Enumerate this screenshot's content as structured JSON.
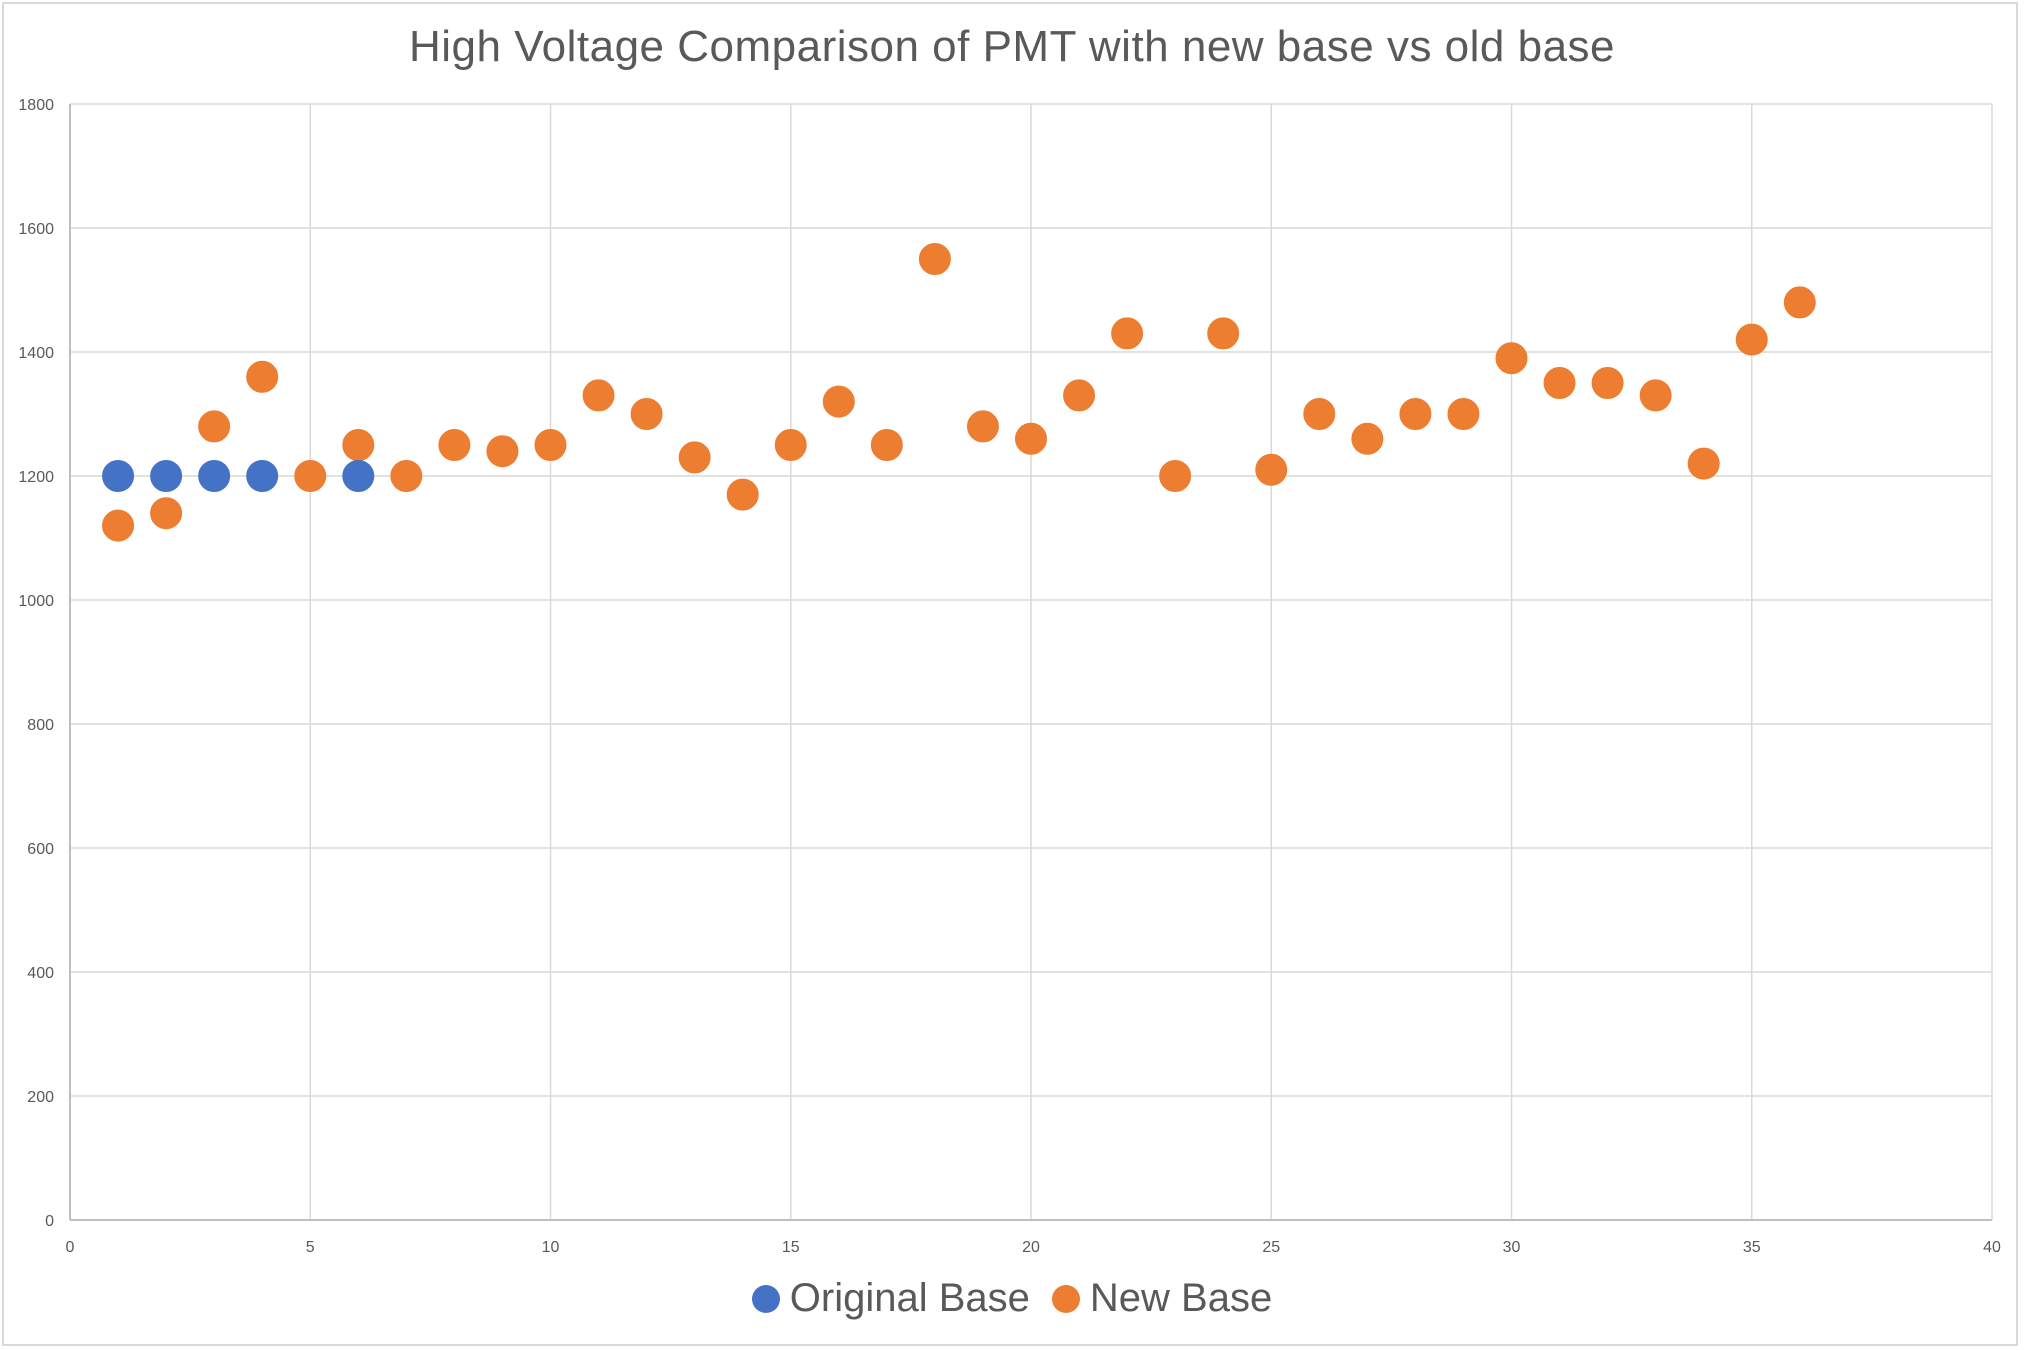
{
  "chart_data": {
    "type": "scatter",
    "title": "High Voltage Comparison of PMT with new base vs old base",
    "xlabel": "",
    "ylabel": "",
    "xlim": [
      0,
      40
    ],
    "ylim": [
      0,
      1800
    ],
    "x_ticks": [
      0,
      5,
      10,
      15,
      20,
      25,
      30,
      35,
      40
    ],
    "y_ticks": [
      0,
      200,
      400,
      600,
      800,
      1000,
      1200,
      1400,
      1600,
      1800
    ],
    "grid": true,
    "legend_position": "bottom",
    "series": [
      {
        "name": "Original Base",
        "color": "#4472c4",
        "points": [
          [
            1,
            1200
          ],
          [
            2,
            1200
          ],
          [
            3,
            1200
          ],
          [
            4,
            1200
          ],
          [
            6,
            1200
          ]
        ]
      },
      {
        "name": "New Base",
        "color": "#ed7d31",
        "points": [
          [
            1,
            1120
          ],
          [
            2,
            1140
          ],
          [
            3,
            1280
          ],
          [
            4,
            1360
          ],
          [
            5,
            1200
          ],
          [
            6,
            1250
          ],
          [
            7,
            1200
          ],
          [
            8,
            1250
          ],
          [
            9,
            1240
          ],
          [
            10,
            1250
          ],
          [
            11,
            1330
          ],
          [
            12,
            1300
          ],
          [
            13,
            1230
          ],
          [
            14,
            1170
          ],
          [
            15,
            1250
          ],
          [
            16,
            1320
          ],
          [
            17,
            1250
          ],
          [
            18,
            1550
          ],
          [
            19,
            1280
          ],
          [
            20,
            1260
          ],
          [
            21,
            1330
          ],
          [
            22,
            1430
          ],
          [
            23,
            1200
          ],
          [
            24,
            1430
          ],
          [
            25,
            1210
          ],
          [
            26,
            1300
          ],
          [
            27,
            1260
          ],
          [
            28,
            1300
          ],
          [
            29,
            1300
          ],
          [
            30,
            1390
          ],
          [
            31,
            1350
          ],
          [
            32,
            1350
          ],
          [
            33,
            1330
          ],
          [
            34,
            1220
          ],
          [
            35,
            1420
          ],
          [
            36,
            1480
          ]
        ]
      }
    ]
  }
}
